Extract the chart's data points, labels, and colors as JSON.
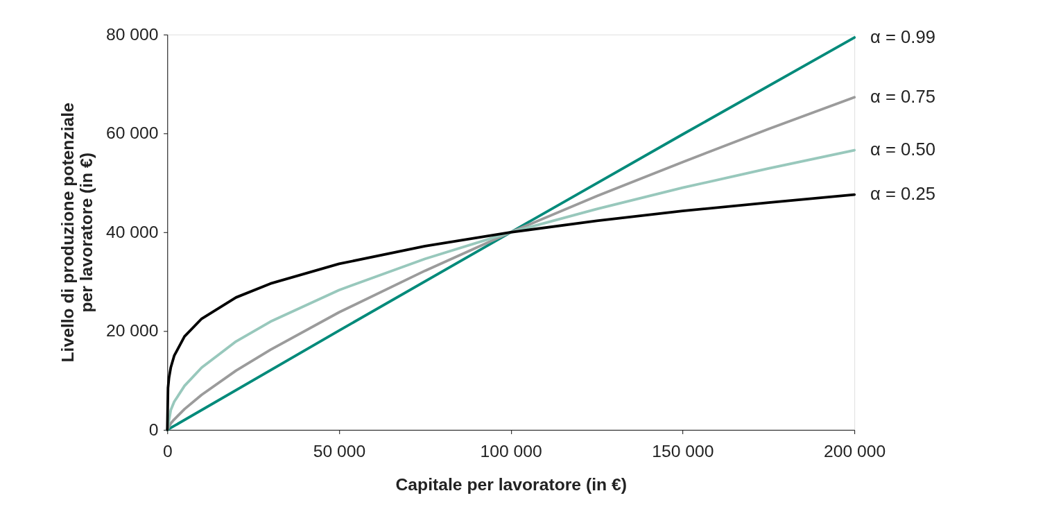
{
  "chart_data": {
    "type": "line",
    "xlabel": "Capitale per lavoratore (in €)",
    "ylabel": "Livello di produzione potenziale\nper lavoratore (in €)",
    "xlim": [
      0,
      200000
    ],
    "ylim": [
      0,
      80000
    ],
    "xticks": [
      0,
      {
        "value": 50000,
        "label": "50 000"
      },
      {
        "value": 100000,
        "label": "100 000"
      },
      {
        "value": 150000,
        "label": "150 000"
      },
      {
        "value": 200000,
        "label": "200 000"
      }
    ],
    "yticks": [
      0,
      {
        "value": 20000,
        "label": "20 000"
      },
      {
        "value": 40000,
        "label": "40 000"
      },
      {
        "value": 60000,
        "label": "60 000"
      },
      {
        "value": 80000,
        "label": "80 000"
      }
    ],
    "grid": false,
    "marker": "none",
    "line_style": "solid",
    "series": [
      {
        "name": "α = 0.99",
        "color": "#008a7a",
        "x": [
          0,
          1000,
          50000,
          100000,
          150000,
          200000
        ],
        "values": [
          0,
          400,
          20100,
          40000,
          59800,
          79400
        ]
      },
      {
        "name": "α = 0.75",
        "color": "#9b9b9b",
        "x": [
          0,
          1000,
          2000,
          5000,
          10000,
          20000,
          30000,
          50000,
          75000,
          100000,
          125000,
          150000,
          175000,
          200000
        ],
        "values": [
          0,
          1300,
          2100,
          4200,
          7100,
          12000,
          16200,
          23800,
          32200,
          40000,
          47300,
          54200,
          60900,
          67300
        ]
      },
      {
        "name": "α = 0.50",
        "color": "#98c8bc",
        "x": [
          0,
          1000,
          2000,
          5000,
          10000,
          20000,
          30000,
          50000,
          75000,
          100000,
          125000,
          150000,
          175000,
          200000
        ],
        "values": [
          0,
          4000,
          5700,
          8900,
          12600,
          17900,
          21900,
          28300,
          34600,
          40000,
          44700,
          49000,
          52900,
          56600
        ]
      },
      {
        "name": "α = 0.25",
        "color": "#000000",
        "x": [
          0,
          200,
          500,
          1000,
          2000,
          5000,
          10000,
          20000,
          30000,
          50000,
          75000,
          100000,
          125000,
          150000,
          175000,
          200000
        ],
        "values": [
          0,
          8500,
          10600,
          12600,
          15000,
          18900,
          22500,
          26800,
          29600,
          33600,
          37200,
          40000,
          42300,
          44300,
          46000,
          47600
        ]
      }
    ]
  }
}
